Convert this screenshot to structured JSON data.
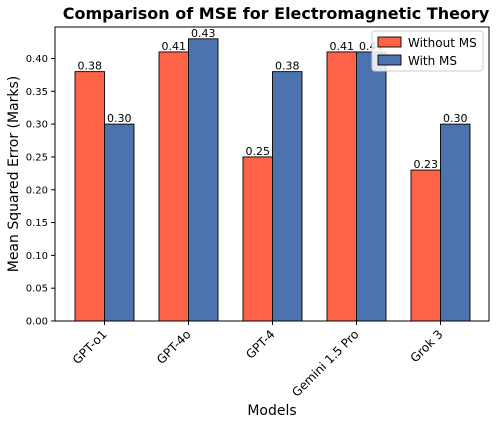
{
  "colors": {
    "without_ms": "#FF6347",
    "with_ms": "#4C72B0"
  },
  "chart_data": {
    "type": "bar",
    "title": "Comparison of MSE for Electromagnetic Theory",
    "xlabel": "Models",
    "ylabel": "Mean Squared Error (Marks)",
    "categories": [
      "GPT-o1",
      "GPT-4o",
      "GPT-4",
      "Gemini 1.5 Pro",
      "Grok 3"
    ],
    "series": [
      {
        "name": "Without MS",
        "values": [
          0.38,
          0.41,
          0.25,
          0.41,
          0.23
        ],
        "labels": [
          "0.38",
          "0.41",
          "0.25",
          "0.41",
          "0.23"
        ]
      },
      {
        "name": "With MS",
        "values": [
          0.3,
          0.43,
          0.38,
          0.41,
          0.3
        ],
        "labels": [
          "0.30",
          "0.43",
          "0.38",
          "0.41",
          "0.30"
        ]
      }
    ],
    "ylim": [
      0,
      0.448
    ],
    "yticks": [
      "0.00",
      "0.05",
      "0.10",
      "0.15",
      "0.20",
      "0.25",
      "0.30",
      "0.35",
      "0.40"
    ],
    "grid": false,
    "legend": "top-right"
  }
}
